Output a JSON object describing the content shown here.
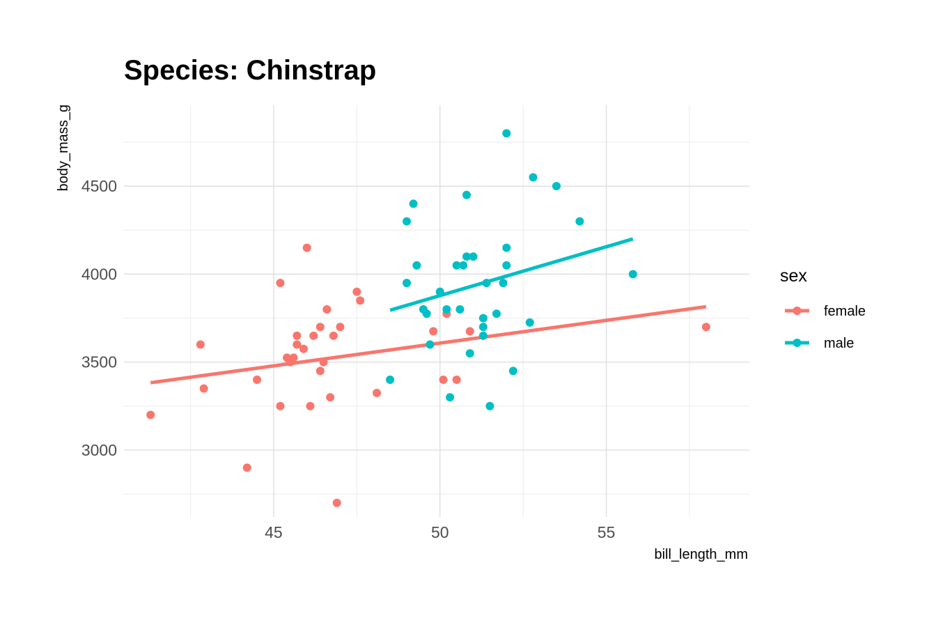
{
  "chart_data": {
    "type": "scatter",
    "title": "Species: Chinstrap",
    "xlabel": "bill_length_mm",
    "ylabel": "body_mass_g",
    "xlim": [
      40.5,
      59.3
    ],
    "ylim": [
      2620,
      4960
    ],
    "x_ticks": [
      45,
      50,
      55
    ],
    "x_tick_labels": [
      "45",
      "50",
      "55"
    ],
    "x_minor_ticks": [
      42.5,
      47.5,
      52.5,
      57.5
    ],
    "y_ticks": [
      3000,
      3500,
      4000,
      4500
    ],
    "y_tick_labels": [
      "3000",
      "3500",
      "4000",
      "4500"
    ],
    "y_minor_ticks": [
      2750,
      3250,
      3750,
      4250,
      4750
    ],
    "grid": true,
    "legend": {
      "title": "sex",
      "position": "right"
    },
    "series": [
      {
        "name": "female",
        "color": "#F8766D",
        "points": [
          [
            41.3,
            3200
          ],
          [
            42.9,
            3350
          ],
          [
            42.8,
            3600
          ],
          [
            44.2,
            2900
          ],
          [
            44.5,
            3400
          ],
          [
            45.2,
            3250
          ],
          [
            45.2,
            3950
          ],
          [
            45.4,
            3525
          ],
          [
            45.5,
            3500
          ],
          [
            45.6,
            3525
          ],
          [
            45.7,
            3650
          ],
          [
            45.7,
            3600
          ],
          [
            45.9,
            3575
          ],
          [
            46.0,
            4150
          ],
          [
            46.1,
            3250
          ],
          [
            46.2,
            3650
          ],
          [
            46.4,
            3700
          ],
          [
            46.4,
            3450
          ],
          [
            46.5,
            3500
          ],
          [
            46.6,
            3800
          ],
          [
            46.7,
            3300
          ],
          [
            46.8,
            3650
          ],
          [
            46.9,
            2700
          ],
          [
            47.0,
            3700
          ],
          [
            47.5,
            3900
          ],
          [
            47.6,
            3850
          ],
          [
            48.1,
            3325
          ],
          [
            49.8,
            3675
          ],
          [
            50.1,
            3400
          ],
          [
            50.2,
            3775
          ],
          [
            50.5,
            3400
          ],
          [
            50.9,
            3675
          ],
          [
            58.0,
            3700
          ]
        ],
        "fit": {
          "x": [
            41.3,
            58.0
          ],
          "y": [
            3383,
            3815
          ]
        }
      },
      {
        "name": "male",
        "color": "#00BFC4",
        "points": [
          [
            48.5,
            3400
          ],
          [
            49.0,
            3950
          ],
          [
            49.0,
            4300
          ],
          [
            49.2,
            4400
          ],
          [
            49.3,
            4050
          ],
          [
            49.5,
            3800
          ],
          [
            49.6,
            3775
          ],
          [
            49.7,
            3600
          ],
          [
            50.0,
            3900
          ],
          [
            50.2,
            3800
          ],
          [
            50.3,
            3300
          ],
          [
            50.5,
            4050
          ],
          [
            50.6,
            3800
          ],
          [
            50.7,
            4050
          ],
          [
            50.8,
            4100
          ],
          [
            50.8,
            4450
          ],
          [
            50.9,
            3550
          ],
          [
            51.0,
            4100
          ],
          [
            51.3,
            3750
          ],
          [
            51.3,
            3700
          ],
          [
            51.3,
            3650
          ],
          [
            51.4,
            3950
          ],
          [
            51.5,
            3250
          ],
          [
            51.7,
            3775
          ],
          [
            51.9,
            3950
          ],
          [
            52.0,
            4150
          ],
          [
            52.0,
            4050
          ],
          [
            52.0,
            4800
          ],
          [
            52.2,
            3450
          ],
          [
            52.7,
            3725
          ],
          [
            52.8,
            4550
          ],
          [
            53.5,
            4500
          ],
          [
            54.2,
            4300
          ],
          [
            55.8,
            4000
          ]
        ],
        "fit": {
          "x": [
            48.5,
            55.8
          ],
          "y": [
            3795,
            4200
          ]
        }
      }
    ]
  }
}
